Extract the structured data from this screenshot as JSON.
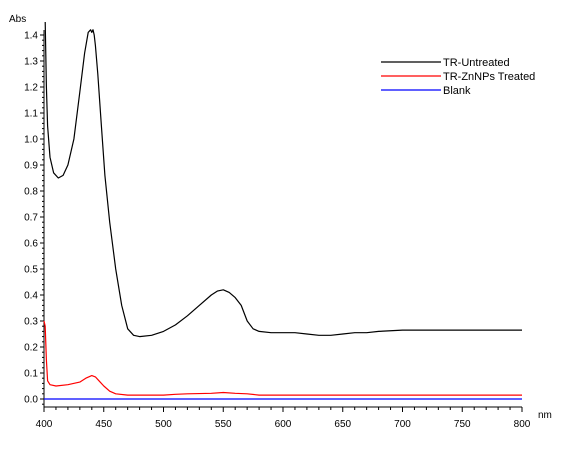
{
  "chart_data": {
    "type": "line",
    "title": "",
    "xlabel": "nm",
    "ylabel": "Abs",
    "xlim": [
      400,
      800
    ],
    "ylim": [
      -0.05,
      1.5
    ],
    "legend_position": "top-right",
    "grid": false,
    "xticks": [
      400,
      450,
      500,
      550,
      600,
      650,
      700,
      750,
      800
    ],
    "yticks": [
      0.0,
      0.1,
      0.2,
      0.3,
      0.4,
      0.5,
      0.6,
      0.7,
      0.8,
      0.9,
      1.0,
      1.1,
      1.2,
      1.3,
      1.4
    ],
    "xtick_labels": [
      "400",
      "450",
      "500",
      "550",
      "600",
      "650",
      "700",
      "750",
      "800"
    ],
    "ytick_labels": [
      "0.0",
      "0.1",
      "0.2",
      "0.3",
      "0.4",
      "0.5",
      "0.6",
      "0.7",
      "0.8",
      "0.9",
      "1.0",
      "1.1",
      "1.2",
      "1.3",
      "1.4"
    ],
    "series": [
      {
        "name": "TR-Untreated",
        "color": "#000000",
        "x": [
          401,
          402,
          403,
          405,
          408,
          412,
          416,
          420,
          425,
          430,
          434,
          437,
          439,
          440,
          441,
          442,
          443,
          445,
          448,
          451,
          455,
          460,
          465,
          470,
          475,
          480,
          490,
          500,
          510,
          520,
          530,
          540,
          545,
          550,
          555,
          560,
          565,
          570,
          575,
          580,
          590,
          600,
          610,
          620,
          630,
          640,
          650,
          660,
          670,
          680,
          700,
          720,
          740,
          760,
          780,
          800
        ],
        "y": [
          1.45,
          1.2,
          1.05,
          0.93,
          0.87,
          0.85,
          0.86,
          0.9,
          1.0,
          1.18,
          1.33,
          1.41,
          1.42,
          1.41,
          1.42,
          1.4,
          1.36,
          1.25,
          1.05,
          0.86,
          0.68,
          0.5,
          0.36,
          0.27,
          0.245,
          0.24,
          0.245,
          0.26,
          0.285,
          0.32,
          0.36,
          0.4,
          0.415,
          0.42,
          0.41,
          0.39,
          0.36,
          0.3,
          0.27,
          0.26,
          0.255,
          0.255,
          0.255,
          0.25,
          0.245,
          0.245,
          0.25,
          0.255,
          0.255,
          0.26,
          0.265,
          0.265,
          0.265,
          0.265,
          0.265,
          0.265
        ]
      },
      {
        "name": "TR-ZnNPs Treated",
        "color": "#ff0000",
        "x": [
          400,
          401,
          402,
          403,
          405,
          410,
          420,
          430,
          435,
          440,
          443,
          446,
          450,
          455,
          460,
          470,
          480,
          500,
          510,
          520,
          540,
          550,
          560,
          570,
          580,
          600,
          650,
          700,
          750,
          800
        ],
        "y": [
          0.3,
          0.28,
          0.15,
          0.07,
          0.055,
          0.05,
          0.055,
          0.065,
          0.08,
          0.09,
          0.085,
          0.07,
          0.05,
          0.03,
          0.02,
          0.015,
          0.015,
          0.015,
          0.018,
          0.02,
          0.022,
          0.025,
          0.022,
          0.02,
          0.015,
          0.015,
          0.015,
          0.015,
          0.015,
          0.015
        ]
      },
      {
        "name": "Blank",
        "color": "#0000ff",
        "x": [
          400,
          500,
          600,
          700,
          800
        ],
        "y": [
          0.0,
          0.0,
          0.0,
          0.0,
          0.0
        ]
      }
    ]
  }
}
